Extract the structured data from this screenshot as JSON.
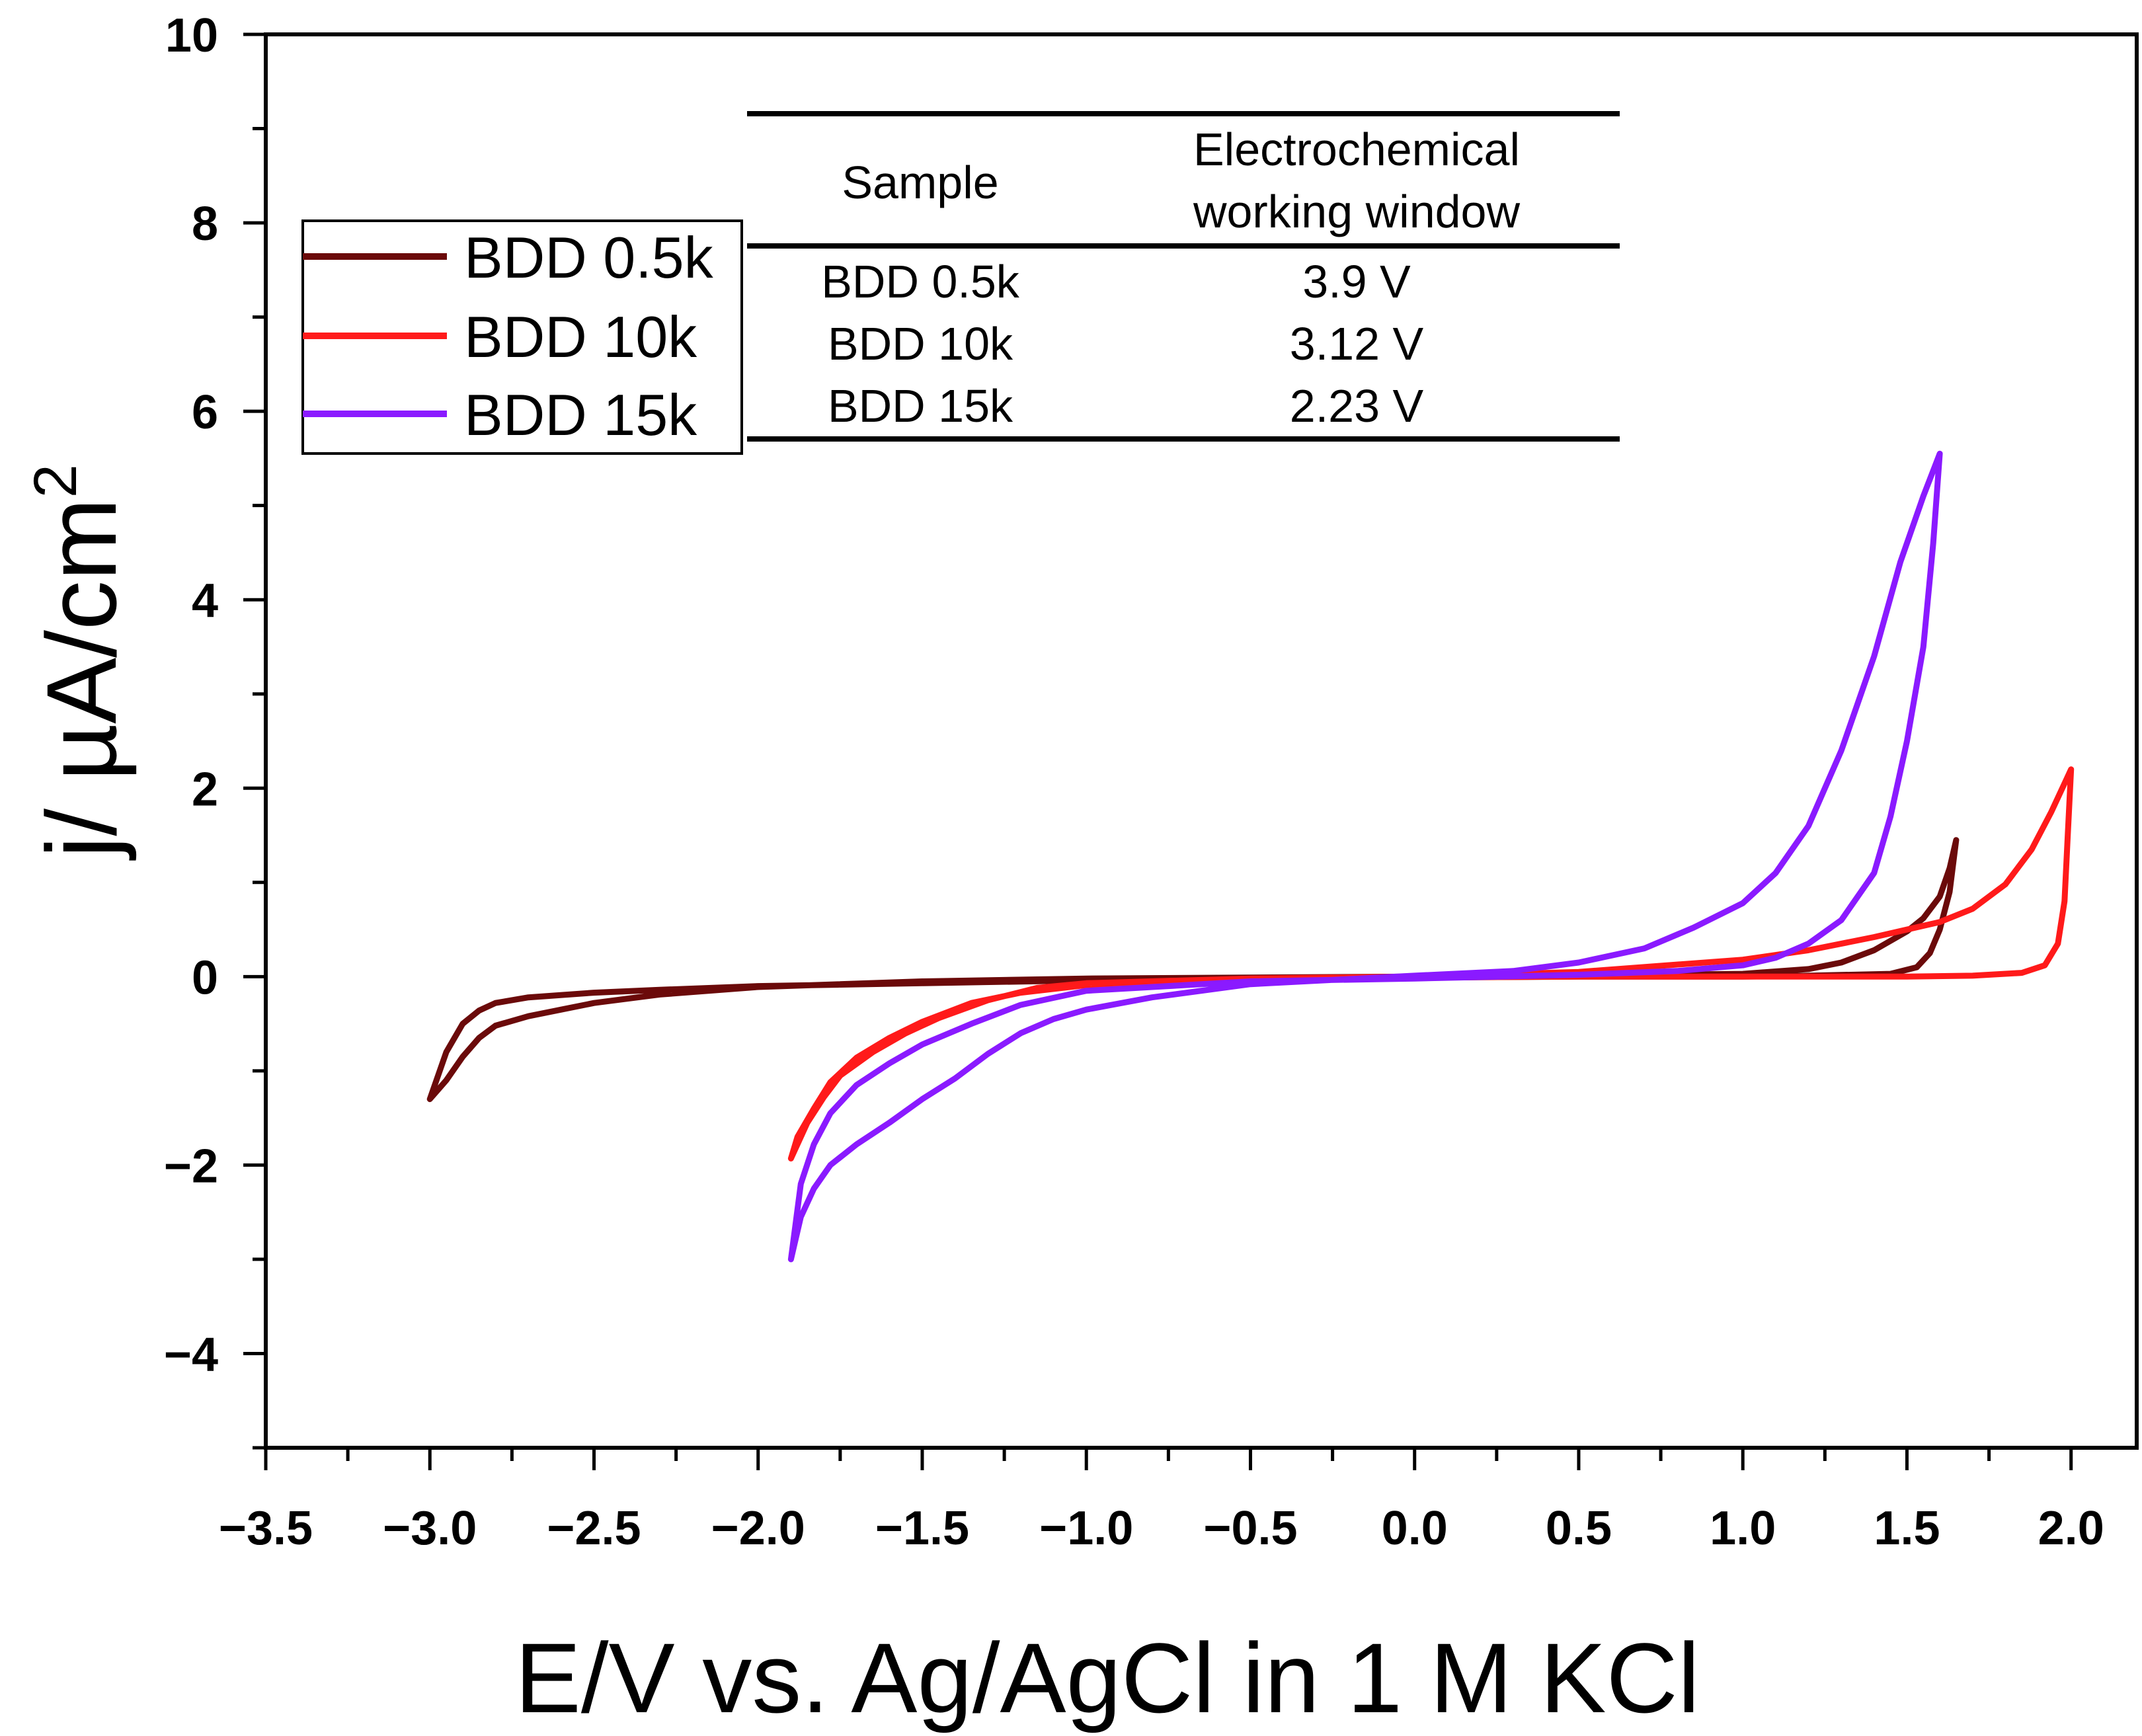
{
  "chart_data": {
    "type": "line",
    "title": "",
    "xlabel": "E/V vs. Ag/AgCl in 1 M KCl",
    "ylabel_main": "j/ µA/cm",
    "ylabel_sup": "2",
    "xlim": [
      -3.5,
      2.2
    ],
    "ylim": [
      -5,
      10
    ],
    "xticks": [
      -3.5,
      -3.0,
      -2.5,
      -2.0,
      -1.5,
      -1.0,
      -0.5,
      0.0,
      0.5,
      1.0,
      1.5,
      2.0
    ],
    "xtick_labels": [
      "−3.5",
      "−3.0",
      "−2.5",
      "−2.0",
      "−1.5",
      "−1.0",
      "−0.5",
      "0.0",
      "0.5",
      "1.0",
      "1.5",
      "2.0"
    ],
    "yticks": [
      -4,
      -2,
      0,
      2,
      4,
      6,
      8,
      10
    ],
    "ytick_labels": [
      "−4",
      "−2",
      "0",
      "2",
      "4",
      "6",
      "8",
      "10"
    ],
    "legend_position": "upper-left",
    "series": [
      {
        "name": "BDD 0.5k",
        "color": "#6b0a0a",
        "points": [
          [
            -3.0,
            -1.3
          ],
          [
            -2.95,
            -1.1
          ],
          [
            -2.9,
            -0.85
          ],
          [
            -2.85,
            -0.65
          ],
          [
            -2.8,
            -0.52
          ],
          [
            -2.7,
            -0.42
          ],
          [
            -2.6,
            -0.35
          ],
          [
            -2.5,
            -0.28
          ],
          [
            -2.3,
            -0.19
          ],
          [
            -2.0,
            -0.11
          ],
          [
            -1.5,
            -0.05
          ],
          [
            -1.0,
            -0.02
          ],
          [
            0.0,
            0.0
          ],
          [
            0.5,
            0.01
          ],
          [
            1.0,
            0.03
          ],
          [
            1.2,
            0.08
          ],
          [
            1.3,
            0.15
          ],
          [
            1.4,
            0.28
          ],
          [
            1.5,
            0.48
          ],
          [
            1.55,
            0.62
          ],
          [
            1.6,
            0.85
          ],
          [
            1.63,
            1.15
          ],
          [
            1.65,
            1.45
          ],
          [
            1.63,
            0.9
          ],
          [
            1.6,
            0.5
          ],
          [
            1.57,
            0.25
          ],
          [
            1.53,
            0.1
          ],
          [
            1.45,
            0.03
          ],
          [
            1.2,
            0.01
          ],
          [
            1.0,
            0.0
          ],
          [
            0.5,
            0.0
          ],
          [
            0.0,
            -0.01
          ],
          [
            -0.5,
            -0.02
          ],
          [
            -1.0,
            -0.04
          ],
          [
            -1.5,
            -0.07
          ],
          [
            -2.0,
            -0.1
          ],
          [
            -2.3,
            -0.14
          ],
          [
            -2.5,
            -0.17
          ],
          [
            -2.7,
            -0.22
          ],
          [
            -2.8,
            -0.28
          ],
          [
            -2.85,
            -0.36
          ],
          [
            -2.9,
            -0.5
          ],
          [
            -2.95,
            -0.8
          ],
          [
            -3.0,
            -1.3
          ]
        ]
      },
      {
        "name": "BDD 10k",
        "color": "#ff1a1a",
        "points": [
          [
            -1.9,
            -1.93
          ],
          [
            -1.85,
            -1.55
          ],
          [
            -1.8,
            -1.28
          ],
          [
            -1.75,
            -1.05
          ],
          [
            -1.65,
            -0.8
          ],
          [
            -1.55,
            -0.6
          ],
          [
            -1.45,
            -0.44
          ],
          [
            -1.3,
            -0.25
          ],
          [
            -1.15,
            -0.12
          ],
          [
            -1.0,
            -0.07
          ],
          [
            -0.5,
            -0.02
          ],
          [
            0.0,
            0.0
          ],
          [
            0.5,
            0.05
          ],
          [
            1.0,
            0.18
          ],
          [
            1.2,
            0.28
          ],
          [
            1.4,
            0.42
          ],
          [
            1.6,
            0.58
          ],
          [
            1.7,
            0.72
          ],
          [
            1.8,
            0.98
          ],
          [
            1.88,
            1.35
          ],
          [
            1.94,
            1.75
          ],
          [
            1.98,
            2.05
          ],
          [
            2.0,
            2.2
          ],
          [
            1.99,
            1.5
          ],
          [
            1.98,
            0.8
          ],
          [
            1.96,
            0.35
          ],
          [
            1.92,
            0.12
          ],
          [
            1.85,
            0.04
          ],
          [
            1.7,
            0.01
          ],
          [
            1.5,
            0.0
          ],
          [
            1.0,
            0.0
          ],
          [
            0.5,
            0.0
          ],
          [
            0.0,
            -0.01
          ],
          [
            -0.5,
            -0.03
          ],
          [
            -1.0,
            -0.09
          ],
          [
            -1.2,
            -0.17
          ],
          [
            -1.35,
            -0.28
          ],
          [
            -1.5,
            -0.48
          ],
          [
            -1.6,
            -0.65
          ],
          [
            -1.7,
            -0.86
          ],
          [
            -1.78,
            -1.12
          ],
          [
            -1.83,
            -1.4
          ],
          [
            -1.88,
            -1.7
          ],
          [
            -1.9,
            -1.93
          ]
        ]
      },
      {
        "name": "BDD 15k",
        "color": "#8a1aff",
        "points": [
          [
            -1.9,
            -3.0
          ],
          [
            -1.87,
            -2.55
          ],
          [
            -1.83,
            -2.25
          ],
          [
            -1.78,
            -2.0
          ],
          [
            -1.7,
            -1.78
          ],
          [
            -1.6,
            -1.55
          ],
          [
            -1.5,
            -1.3
          ],
          [
            -1.4,
            -1.08
          ],
          [
            -1.3,
            -0.82
          ],
          [
            -1.2,
            -0.6
          ],
          [
            -1.1,
            -0.45
          ],
          [
            -1.0,
            -0.35
          ],
          [
            -0.8,
            -0.22
          ],
          [
            -0.5,
            -0.08
          ],
          [
            0.0,
            0.01
          ],
          [
            0.3,
            0.06
          ],
          [
            0.5,
            0.15
          ],
          [
            0.7,
            0.3
          ],
          [
            0.85,
            0.52
          ],
          [
            1.0,
            0.78
          ],
          [
            1.1,
            1.1
          ],
          [
            1.2,
            1.6
          ],
          [
            1.3,
            2.4
          ],
          [
            1.4,
            3.4
          ],
          [
            1.48,
            4.4
          ],
          [
            1.55,
            5.1
          ],
          [
            1.6,
            5.55
          ],
          [
            1.58,
            4.6
          ],
          [
            1.55,
            3.5
          ],
          [
            1.5,
            2.5
          ],
          [
            1.45,
            1.7
          ],
          [
            1.4,
            1.1
          ],
          [
            1.3,
            0.6
          ],
          [
            1.2,
            0.35
          ],
          [
            1.1,
            0.2
          ],
          [
            1.0,
            0.12
          ],
          [
            0.8,
            0.06
          ],
          [
            0.5,
            0.02
          ],
          [
            0.0,
            -0.02
          ],
          [
            -0.5,
            -0.05
          ],
          [
            -1.0,
            -0.15
          ],
          [
            -1.2,
            -0.3
          ],
          [
            -1.35,
            -0.5
          ],
          [
            -1.5,
            -0.72
          ],
          [
            -1.6,
            -0.92
          ],
          [
            -1.7,
            -1.15
          ],
          [
            -1.78,
            -1.45
          ],
          [
            -1.83,
            -1.78
          ],
          [
            -1.87,
            -2.2
          ],
          [
            -1.9,
            -3.0
          ]
        ]
      }
    ],
    "inset_table": {
      "headers": [
        "Sample",
        "Electrochemical",
        "working window"
      ],
      "rows": [
        {
          "sample": "BDD 0.5k",
          "window": "3.9 V"
        },
        {
          "sample": "BDD 10k",
          "window": "3.12 V"
        },
        {
          "sample": "BDD 15k",
          "window": "2.23 V"
        }
      ]
    }
  }
}
